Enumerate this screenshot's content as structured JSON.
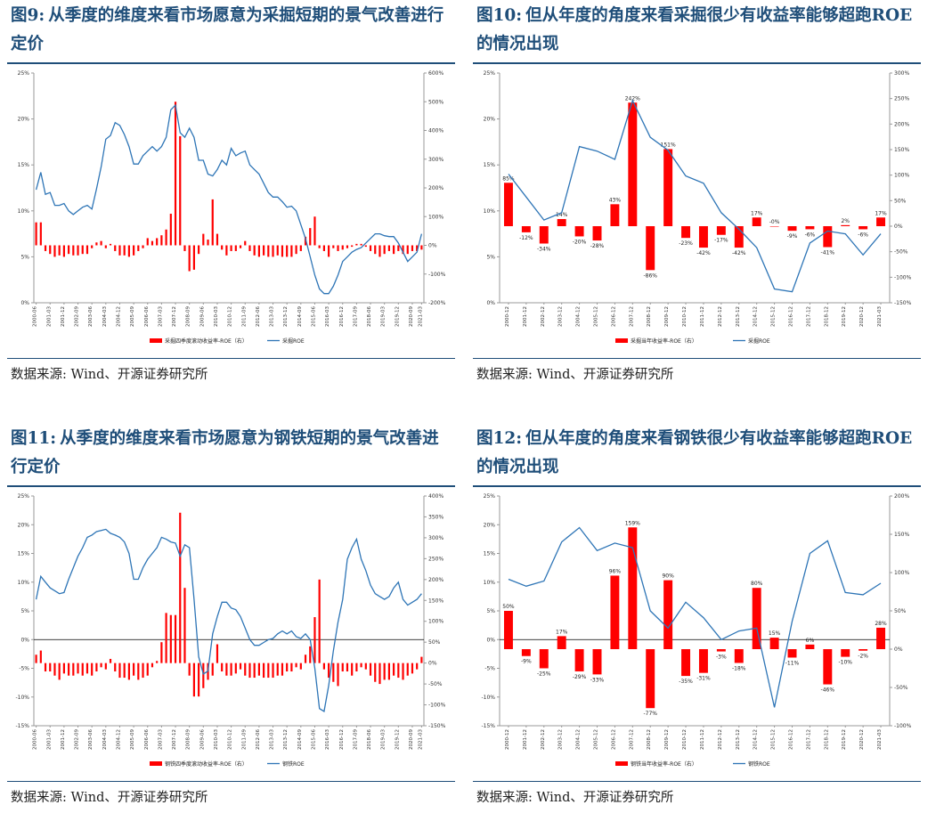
{
  "panels": [
    {
      "fig": "图9:",
      "title": "从季度的维度来看市场愿意为采掘短期的景气改善进行定价",
      "source": "数据来源:  Wind、开源证券研究所",
      "chart_data": {
        "type": "bar+line",
        "categories": [
          "2000-06",
          "2000-09",
          "2000-12",
          "2001-03",
          "2001-06",
          "2001-09",
          "2001-12",
          "2002-03",
          "2002-06",
          "2002-09",
          "2002-12",
          "2003-03",
          "2003-06",
          "2003-09",
          "2003-12",
          "2004-03",
          "2004-06",
          "2004-09",
          "2004-12",
          "2005-03",
          "2005-06",
          "2005-09",
          "2005-12",
          "2006-03",
          "2006-06",
          "2006-09",
          "2006-12",
          "2007-03",
          "2007-06",
          "2007-09",
          "2007-12",
          "2008-03",
          "2008-06",
          "2008-09",
          "2008-12",
          "2009-03",
          "2009-06",
          "2009-09",
          "2009-12",
          "2010-03",
          "2010-06",
          "2010-09",
          "2010-12",
          "2011-03",
          "2011-06",
          "2011-09",
          "2011-12",
          "2012-03",
          "2012-06",
          "2012-09",
          "2012-12",
          "2013-03",
          "2013-06",
          "2013-09",
          "2013-12",
          "2014-03",
          "2014-06",
          "2014-09",
          "2014-12",
          "2015-03",
          "2015-06",
          "2015-09",
          "2015-12",
          "2016-03",
          "2016-06",
          "2016-09",
          "2016-12",
          "2017-03",
          "2017-06",
          "2017-09",
          "2017-12",
          "2018-03",
          "2018-06",
          "2018-09",
          "2018-12",
          "2019-03",
          "2019-06",
          "2019-09",
          "2019-12",
          "2020-03",
          "2020-06",
          "2020-09",
          "2020-12",
          "2021-03"
        ],
        "ticks": [
          "2000-06",
          "2001-03",
          "2001-12",
          "2002-09",
          "2003-06",
          "2004-03",
          "2004-12",
          "2005-09",
          "2006-06",
          "2007-03",
          "2007-12",
          "2008-09",
          "2009-06",
          "2010-03",
          "2010-12",
          "2011-09",
          "2012-06",
          "2013-03",
          "2013-12",
          "2014-09",
          "2015-06",
          "2016-03",
          "2016-12",
          "2017-09",
          "2018-06",
          "2019-03",
          "2019-12",
          "2020-09",
          "2021-03"
        ],
        "bar_series": {
          "name": "采掘四季度滚动收益率-ROE（右）",
          "values": [
            80,
            80,
            -20,
            -30,
            -40,
            -35,
            -40,
            -30,
            -35,
            -35,
            -30,
            -30,
            -10,
            10,
            15,
            -10,
            5,
            -20,
            -35,
            -35,
            -40,
            -35,
            -20,
            -10,
            25,
            15,
            25,
            35,
            55,
            110,
            500,
            380,
            -20,
            -90,
            -85,
            -30,
            40,
            20,
            160,
            40,
            -15,
            -35,
            -20,
            -20,
            -10,
            15,
            -20,
            -35,
            -40,
            -35,
            -40,
            -40,
            -35,
            -40,
            -40,
            -40,
            -30,
            -20,
            30,
            60,
            100,
            -10,
            -20,
            -40,
            -10,
            -20,
            -15,
            -10,
            -5,
            5,
            5,
            -5,
            -20,
            -30,
            -40,
            -30,
            -20,
            -30,
            -20,
            -30,
            -30,
            -20,
            -20,
            -15
          ]
        },
        "line_series": {
          "name": "采掘ROE",
          "values": [
            12.3,
            14.2,
            11.8,
            12.0,
            10.6,
            10.6,
            10.8,
            10.0,
            9.6,
            10.0,
            10.4,
            10.6,
            10.2,
            12.4,
            14.8,
            17.8,
            18.2,
            19.6,
            19.3,
            18.3,
            17.0,
            15.1,
            15.1,
            16.0,
            16.5,
            17.0,
            16.5,
            17.0,
            18.0,
            21.0,
            21.5,
            18.5,
            18.0,
            19.0,
            18.0,
            15.5,
            15.5,
            14.0,
            13.8,
            14.5,
            15.5,
            15.0,
            16.8,
            16.0,
            16.3,
            16.5,
            15.0,
            14.5,
            14.0,
            13.0,
            12.0,
            11.5,
            11.5,
            11.0,
            10.4,
            10.5,
            10.0,
            8.5,
            7.0,
            5.0,
            3.0,
            1.5,
            1.0,
            1.0,
            1.8,
            3.0,
            4.5,
            5.0,
            5.5,
            5.8,
            6.0,
            6.5,
            7.0,
            7.5,
            7.5,
            7.3,
            7.2,
            7.2,
            6.5,
            5.5,
            4.5,
            5.0,
            5.5,
            7.5
          ]
        },
        "yleft": {
          "min": 0,
          "max": 25,
          "step": 5,
          "labels": [
            "0%",
            "5%",
            "10%",
            "15%",
            "20%",
            "25%"
          ]
        },
        "yright": {
          "min": -200,
          "max": 600,
          "step": 100,
          "labels": [
            "-200%",
            "-100%",
            "0%",
            "100%",
            "200%",
            "300%",
            "400%",
            "500%",
            "600%"
          ]
        },
        "bar_labels": []
      }
    },
    {
      "fig": "图10:",
      "title": "但从年度的角度来看采掘很少有收益率能够超跑ROE 的情况出现",
      "source": "数据来源:  Wind、开源证券研究所",
      "chart_data": {
        "type": "bar+line",
        "categories": [
          "2000-12",
          "2001-12",
          "2002-12",
          "2003-12",
          "2004-12",
          "2005-12",
          "2006-12",
          "2007-12",
          "2008-12",
          "2009-12",
          "2010-12",
          "2011-12",
          "2012-12",
          "2013-12",
          "2014-12",
          "2015-12",
          "2016-12",
          "2017-12",
          "2018-12",
          "2019-12",
          "2020-12",
          "2021-03"
        ],
        "ticks": [
          "2000-12",
          "2001-12",
          "2002-12",
          "2003-12",
          "2004-12",
          "2005-12",
          "2006-12",
          "2007-12",
          "2008-12",
          "2009-12",
          "2010-12",
          "2011-12",
          "2012-12",
          "2013-12",
          "2014-12",
          "2015-12",
          "2016-12",
          "2017-12",
          "2018-12",
          "2019-12",
          "2020-12",
          "2021-03"
        ],
        "bar_series": {
          "name": "采掘当年收益率-ROE（右）",
          "values": [
            85,
            -12,
            -34,
            14,
            -20,
            -28,
            43,
            242,
            -86,
            151,
            -23,
            -42,
            -17,
            -42,
            17,
            0,
            -9,
            -6,
            -41,
            2,
            -6,
            17
          ]
        },
        "line_series": {
          "name": "采掘ROE",
          "values": [
            14.0,
            11.5,
            9.0,
            9.8,
            17.0,
            16.5,
            15.6,
            22.0,
            18.0,
            16.6,
            13.8,
            13.0,
            9.8,
            8.0,
            6.0,
            1.5,
            1.2,
            6.5,
            7.8,
            7.5,
            5.2,
            7.5
          ]
        },
        "yleft": {
          "min": 0,
          "max": 25,
          "step": 5,
          "labels": [
            "0%",
            "5%",
            "10%",
            "15%",
            "20%",
            "25%"
          ]
        },
        "yright": {
          "min": -150,
          "max": 300,
          "step": 50,
          "labels": [
            "-150%",
            "-100%",
            "-50%",
            "0%",
            "50%",
            "100%",
            "150%",
            "200%",
            "250%",
            "300%"
          ]
        },
        "bar_labels": [
          "85%",
          "-12%",
          "-34%",
          "14%",
          "-20%",
          "-28%",
          "43%",
          "242%",
          "-86%",
          "151%",
          "-23%",
          "-42%",
          "-17%",
          "-42%",
          "17%",
          "-0%",
          "-9%",
          "-6%",
          "-41%",
          "2%",
          "-6%",
          "17%"
        ]
      }
    },
    {
      "fig": "图11:",
      "title": "从季度的维度来看市场愿意为钢铁短期的景气改善进行定价",
      "source": "数据来源:  Wind、开源证券研究所",
      "chart_data": {
        "type": "bar+line",
        "categories": [
          "2000-06",
          "2000-09",
          "2000-12",
          "2001-03",
          "2001-06",
          "2001-09",
          "2001-12",
          "2002-03",
          "2002-06",
          "2002-09",
          "2002-12",
          "2003-03",
          "2003-06",
          "2003-09",
          "2003-12",
          "2004-03",
          "2004-06",
          "2004-09",
          "2004-12",
          "2005-03",
          "2005-06",
          "2005-09",
          "2005-12",
          "2006-03",
          "2006-06",
          "2006-09",
          "2006-12",
          "2007-03",
          "2007-06",
          "2007-09",
          "2007-12",
          "2008-03",
          "2008-06",
          "2008-09",
          "2008-12",
          "2009-03",
          "2009-06",
          "2009-09",
          "2009-12",
          "2010-03",
          "2010-06",
          "2010-09",
          "2010-12",
          "2011-03",
          "2011-06",
          "2011-09",
          "2011-12",
          "2012-03",
          "2012-06",
          "2012-09",
          "2012-12",
          "2013-03",
          "2013-06",
          "2013-09",
          "2013-12",
          "2014-03",
          "2014-06",
          "2014-09",
          "2014-12",
          "2015-03",
          "2015-06",
          "2015-09",
          "2015-12",
          "2016-03",
          "2016-06",
          "2016-09",
          "2016-12",
          "2017-03",
          "2017-06",
          "2017-09",
          "2017-12",
          "2018-03",
          "2018-06",
          "2018-09",
          "2018-12",
          "2019-03",
          "2019-06",
          "2019-09",
          "2019-12",
          "2020-03",
          "2020-06",
          "2020-09",
          "2020-12",
          "2021-03"
        ],
        "ticks": [
          "2000-06",
          "2001-03",
          "2001-12",
          "2002-09",
          "2003-06",
          "2004-03",
          "2004-12",
          "2005-09",
          "2006-06",
          "2007-03",
          "2007-12",
          "2008-09",
          "2009-06",
          "2010-03",
          "2010-12",
          "2011-09",
          "2012-06",
          "2013-03",
          "2013-12",
          "2014-09",
          "2015-06",
          "2016-03",
          "2016-12",
          "2017-09",
          "2018-06",
          "2019-03",
          "2019-12",
          "2020-09",
          "2021-03"
        ],
        "bar_series": {
          "name": "钢铁四季度滚动收益率-ROE（右）",
          "values": [
            20,
            30,
            -20,
            -20,
            -30,
            -40,
            -25,
            -30,
            -30,
            -25,
            -30,
            -25,
            -30,
            -20,
            -10,
            -15,
            10,
            -20,
            -35,
            -35,
            -40,
            -30,
            -40,
            -35,
            -30,
            -10,
            5,
            50,
            120,
            115,
            115,
            360,
            180,
            -30,
            -80,
            -80,
            -60,
            -40,
            -30,
            45,
            -20,
            -30,
            -30,
            -25,
            -15,
            -30,
            -35,
            -35,
            -30,
            -35,
            -35,
            -35,
            -30,
            -30,
            -20,
            -20,
            -10,
            -15,
            20,
            40,
            110,
            200,
            -15,
            -35,
            -45,
            -55,
            -20,
            -20,
            -30,
            -20,
            -10,
            -15,
            -30,
            -45,
            -50,
            -40,
            -40,
            -30,
            -35,
            -40,
            -30,
            -25,
            -15,
            15
          ]
        },
        "line_series": {
          "name": "钢铁ROE",
          "values": [
            7.0,
            11.0,
            10.0,
            9.0,
            8.5,
            8.0,
            8.2,
            10.5,
            12.5,
            14.5,
            16.0,
            17.8,
            18.2,
            18.8,
            19.0,
            19.2,
            18.5,
            18.2,
            17.8,
            17.0,
            15.0,
            10.5,
            10.5,
            12.5,
            14.0,
            15.0,
            16.0,
            17.8,
            17.5,
            17.0,
            16.8,
            14.5,
            16.5,
            16.0,
            7.0,
            -3.0,
            -6.0,
            -5.5,
            1.0,
            4.0,
            6.5,
            6.5,
            5.5,
            5.2,
            4.0,
            2.0,
            0.0,
            -1.0,
            -1.0,
            -0.5,
            0.0,
            0.2,
            1.0,
            1.5,
            1.0,
            1.5,
            0.5,
            0.2,
            1.0,
            0.0,
            -5.0,
            -12.0,
            -12.5,
            -8.0,
            -2.0,
            3.0,
            7.0,
            14.0,
            16.0,
            17.5,
            14.0,
            12.0,
            9.5,
            8.0,
            7.5,
            7.0,
            7.5,
            9.0,
            10.0,
            7.0,
            6.0,
            6.5,
            7.0,
            8.0
          ]
        },
        "yleft": {
          "min": -15,
          "max": 25,
          "step": 5,
          "labels": [
            "-15%",
            "-10%",
            "-5%",
            "0%",
            "5%",
            "10%",
            "15%",
            "20%",
            "25%"
          ]
        },
        "yright": {
          "min": -150,
          "max": 400,
          "step": 50,
          "labels": [
            "-150%",
            "-100%",
            "-50%",
            "0%",
            "50%",
            "100%",
            "150%",
            "200%",
            "250%",
            "300%",
            "350%",
            "400%"
          ]
        },
        "bar_labels": []
      }
    },
    {
      "fig": "图12:",
      "title": "但从年度的角度来看钢铁很少有收益率能够超跑ROE 的情况出现",
      "source": "数据来源:  Wind、开源证券研究所",
      "chart_data": {
        "type": "bar+line",
        "categories": [
          "2000-12",
          "2001-12",
          "2002-12",
          "2003-12",
          "2004-12",
          "2005-12",
          "2006-12",
          "2007-12",
          "2008-12",
          "2009-12",
          "2010-12",
          "2011-12",
          "2012-12",
          "2013-12",
          "2014-12",
          "2015-12",
          "2016-12",
          "2017-12",
          "2018-12",
          "2019-12",
          "2020-12",
          "2021-03"
        ],
        "ticks": [
          "2000-12",
          "2001-12",
          "2002-12",
          "2003-12",
          "2004-12",
          "2005-12",
          "2006-12",
          "2007-12",
          "2008-12",
          "2009-12",
          "2010-12",
          "2011-12",
          "2012-12",
          "2013-12",
          "2014-12",
          "2015-12",
          "2016-12",
          "2017-12",
          "2018-12",
          "2019-12",
          "2020-12",
          "2021-03"
        ],
        "bar_series": {
          "name": "钢铁当年收益率-ROE（右）",
          "values": [
            50,
            -9,
            -25,
            17,
            -29,
            -33,
            96,
            159,
            -77,
            90,
            -35,
            -31,
            -3,
            -18,
            80,
            15,
            -11,
            6,
            -46,
            -10,
            -2,
            28
          ]
        },
        "line_series": {
          "name": "钢铁ROE",
          "values": [
            10.5,
            9.3,
            10.2,
            17.0,
            19.5,
            15.5,
            16.8,
            16.0,
            5.0,
            2.0,
            6.5,
            3.8,
            0.0,
            1.5,
            2.0,
            -11.8,
            3.2,
            15.0,
            17.2,
            8.2,
            7.8,
            9.8
          ]
        },
        "yleft": {
          "min": -15,
          "max": 25,
          "step": 5,
          "labels": [
            "-15%",
            "-10%",
            "-5%",
            "0%",
            "5%",
            "10%",
            "15%",
            "20%",
            "25%"
          ]
        },
        "yright": {
          "min": -100,
          "max": 200,
          "step": 50,
          "labels": [
            "-100%",
            "-50%",
            "0%",
            "50%",
            "100%",
            "150%",
            "200%"
          ]
        },
        "bar_labels": [
          "50%",
          "-9%",
          "-25%",
          "17%",
          "-29%",
          "-33%",
          "96%",
          "159%",
          "-77%",
          "90%",
          "-35%",
          "-31%",
          "-3%",
          "-18%",
          "80%",
          "15%",
          "-11%",
          "6%",
          "-46%",
          "-10%",
          "-2%",
          "28%"
        ]
      }
    }
  ],
  "colors": {
    "bar": "#ff0000",
    "line": "#2e75b6",
    "title": "#1f4e79",
    "axis": "#999999",
    "zero": "#000000"
  }
}
